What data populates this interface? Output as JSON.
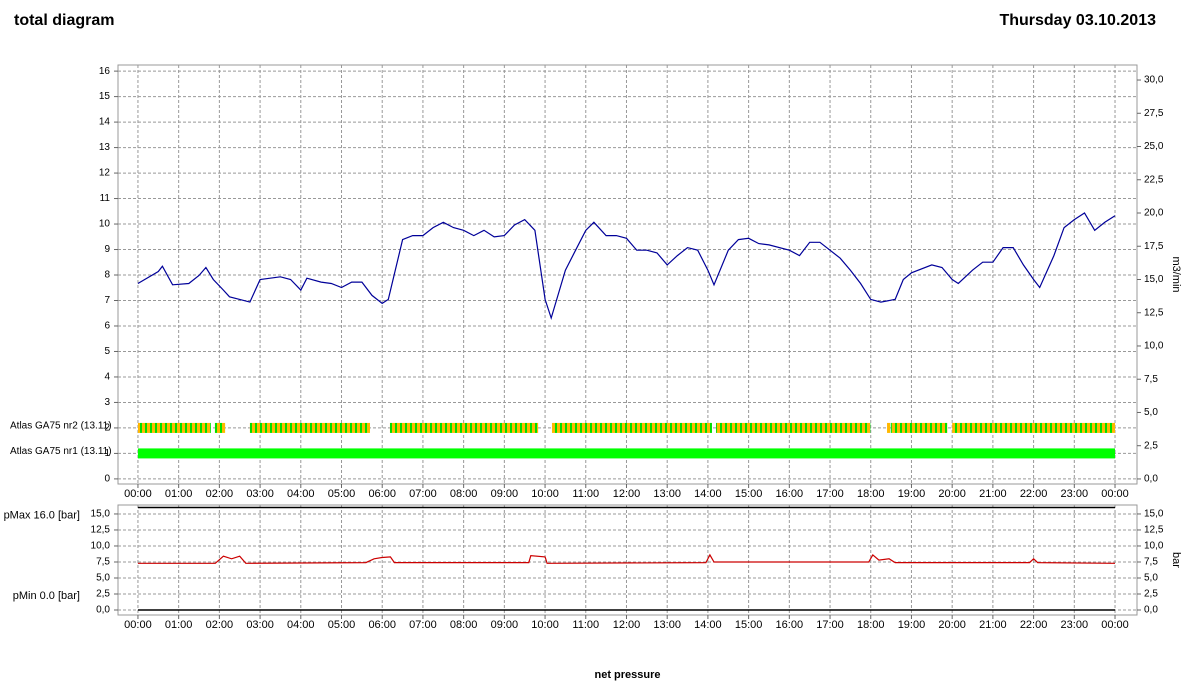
{
  "header": {
    "title": "total diagram",
    "date": "Thursday 03.10.2013"
  },
  "chart_data": [
    {
      "type": "line",
      "y2label": "m3/min",
      "grid": true,
      "xlim": [
        -0.49,
        24.54
      ],
      "xticks": [
        {
          "value": 0,
          "label": "00:00"
        },
        {
          "value": 1,
          "label": "01:00"
        },
        {
          "value": 2,
          "label": "02:00"
        },
        {
          "value": 3,
          "label": "03:00"
        },
        {
          "value": 4,
          "label": "04:00"
        },
        {
          "value": 5,
          "label": "05:00"
        },
        {
          "value": 6,
          "label": "06:00"
        },
        {
          "value": 7,
          "label": "07:00"
        },
        {
          "value": 8,
          "label": "08:00"
        },
        {
          "value": 9,
          "label": "09:00"
        },
        {
          "value": 10,
          "label": "10:00"
        },
        {
          "value": 11,
          "label": "11:00"
        },
        {
          "value": 12,
          "label": "12:00"
        },
        {
          "value": 13,
          "label": "13:00"
        },
        {
          "value": 14,
          "label": "14:00"
        },
        {
          "value": 15,
          "label": "15:00"
        },
        {
          "value": 16,
          "label": "16:00"
        },
        {
          "value": 17,
          "label": "17:00"
        },
        {
          "value": 18,
          "label": "18:00"
        },
        {
          "value": 19,
          "label": "19:00"
        },
        {
          "value": 20,
          "label": "20:00"
        },
        {
          "value": 21,
          "label": "21:00"
        },
        {
          "value": 22,
          "label": "22:00"
        },
        {
          "value": 23,
          "label": "23:00"
        },
        {
          "value": 24,
          "label": "00:00"
        }
      ],
      "ylim": [
        -0.2,
        16.24
      ],
      "yticks": [
        0,
        1,
        2,
        3,
        4,
        5,
        6,
        7,
        8,
        9,
        10,
        11,
        12,
        13,
        14,
        15,
        16
      ],
      "y2lim": [
        -0.38,
        31.13
      ],
      "y2ticks": [
        {
          "value": 0,
          "label": "0,0"
        },
        {
          "value": 2.5,
          "label": "2,5"
        },
        {
          "value": 5,
          "label": "5,0"
        },
        {
          "value": 7.5,
          "label": "7,5"
        },
        {
          "value": 10,
          "label": "10,0"
        },
        {
          "value": 12.5,
          "label": "12,5"
        },
        {
          "value": 15,
          "label": "15,0"
        },
        {
          "value": 17.5,
          "label": "17,5"
        },
        {
          "value": 20,
          "label": "20,0"
        },
        {
          "value": 22.5,
          "label": "22,5"
        },
        {
          "value": 25,
          "label": "25,0"
        },
        {
          "value": 27.5,
          "label": "27,5"
        },
        {
          "value": 30,
          "label": "30,0"
        }
      ],
      "series": [
        {
          "axis": "y2",
          "color": "#000099",
          "x": [
            0,
            0.5,
            0.6,
            0.85,
            1.25,
            1.5,
            1.67,
            1.85,
            2.1,
            2.25,
            2.5,
            2.75,
            3,
            3.5,
            3.75,
            4,
            4.15,
            4.5,
            4.75,
            5,
            5.25,
            5.5,
            5.75,
            6,
            6.15,
            6.5,
            6.75,
            7,
            7.25,
            7.5,
            7.75,
            8,
            8.25,
            8.5,
            8.75,
            9,
            9.25,
            9.5,
            9.75,
            10,
            10.15,
            10.5,
            10.75,
            11,
            11.2,
            11.5,
            11.75,
            12,
            12.25,
            12.5,
            12.75,
            13,
            13.25,
            13.5,
            13.75,
            14,
            14.15,
            14.5,
            14.75,
            15,
            15.25,
            15.5,
            16,
            16.25,
            16.5,
            16.75,
            17,
            17.25,
            17.5,
            17.75,
            18,
            18.25,
            18.6,
            18.8,
            19,
            19.5,
            19.75,
            20,
            20.15,
            20.5,
            20.75,
            21,
            21.25,
            21.5,
            21.75,
            22,
            22.15,
            22.5,
            22.75,
            23,
            23.25,
            23.5,
            23.75,
            24
          ],
          "values": [
            14.7,
            15.6,
            16.0,
            14.6,
            14.7,
            15.3,
            15.9,
            15.0,
            14.2,
            13.7,
            13.5,
            13.3,
            15.0,
            15.2,
            15.0,
            14.2,
            15.1,
            14.8,
            14.7,
            14.4,
            14.8,
            14.8,
            13.8,
            13.2,
            13.5,
            18.0,
            18.3,
            18.3,
            18.9,
            19.3,
            18.9,
            18.7,
            18.3,
            18.7,
            18.2,
            18.3,
            19.1,
            19.5,
            18.7,
            13.5,
            12.1,
            15.7,
            17.2,
            18.7,
            19.3,
            18.3,
            18.3,
            18.1,
            17.2,
            17.2,
            17.0,
            16.1,
            16.8,
            17.4,
            17.2,
            15.7,
            14.6,
            17.2,
            18.0,
            18.1,
            17.7,
            17.6,
            17.2,
            16.8,
            17.8,
            17.8,
            17.2,
            16.6,
            15.7,
            14.7,
            13.5,
            13.3,
            13.5,
            15.0,
            15.5,
            16.1,
            15.9,
            15.0,
            14.7,
            15.7,
            16.3,
            16.3,
            17.4,
            17.4,
            16.1,
            15.0,
            14.4,
            16.8,
            18.9,
            19.5,
            20.0,
            18.7,
            19.3,
            19.8
          ]
        }
      ],
      "status_rows": [
        {
          "name": "Atlas GA75 nr2 (13.11)",
          "level": 2,
          "color": "#ffb800",
          "stripe_color": "#00e000",
          "segments": [
            [
              0,
              1.79
            ],
            [
              1.89,
              2.14
            ],
            [
              2.75,
              5.7
            ],
            [
              6.19,
              9.83
            ],
            [
              10.17,
              14.1
            ],
            [
              14.2,
              17.99
            ],
            [
              18.4,
              18.48
            ],
            [
              18.5,
              19.88
            ],
            [
              20.0,
              24
            ]
          ]
        },
        {
          "name": "Atlas GA75 nr1 (13.11)",
          "level": 1,
          "color": "#00ff00",
          "stripe_color": "#00ff00",
          "segments": [
            [
              0,
              24
            ]
          ]
        }
      ]
    },
    {
      "type": "line",
      "xlabel": "net pressure",
      "y2label": "bar",
      "grid": true,
      "xlim": [
        -0.49,
        24.54
      ],
      "xticks": [
        {
          "value": 0,
          "label": "00:00"
        },
        {
          "value": 1,
          "label": "01:00"
        },
        {
          "value": 2,
          "label": "02:00"
        },
        {
          "value": 3,
          "label": "03:00"
        },
        {
          "value": 4,
          "label": "04:00"
        },
        {
          "value": 5,
          "label": "05:00"
        },
        {
          "value": 6,
          "label": "06:00"
        },
        {
          "value": 7,
          "label": "07:00"
        },
        {
          "value": 8,
          "label": "08:00"
        },
        {
          "value": 9,
          "label": "09:00"
        },
        {
          "value": 10,
          "label": "10:00"
        },
        {
          "value": 11,
          "label": "11:00"
        },
        {
          "value": 12,
          "label": "12:00"
        },
        {
          "value": 13,
          "label": "13:00"
        },
        {
          "value": 14,
          "label": "14:00"
        },
        {
          "value": 15,
          "label": "15:00"
        },
        {
          "value": 16,
          "label": "16:00"
        },
        {
          "value": 17,
          "label": "17:00"
        },
        {
          "value": 18,
          "label": "18:00"
        },
        {
          "value": 19,
          "label": "19:00"
        },
        {
          "value": 20,
          "label": "20:00"
        },
        {
          "value": 21,
          "label": "21:00"
        },
        {
          "value": 22,
          "label": "22:00"
        },
        {
          "value": 23,
          "label": "23:00"
        },
        {
          "value": 24,
          "label": "00:00"
        }
      ],
      "ylim": [
        -0.78,
        16.4
      ],
      "yticks": [
        {
          "value": 0,
          "label": "0,0"
        },
        {
          "value": 2.5,
          "label": "2,5"
        },
        {
          "value": 5,
          "label": "5,0"
        },
        {
          "value": 7.5,
          "label": "7,5"
        },
        {
          "value": 10,
          "label": "10,0"
        },
        {
          "value": 12.5,
          "label": "12,5"
        },
        {
          "value": 15,
          "label": "15,0"
        }
      ],
      "y2lim": [
        -0.78,
        16.4
      ],
      "y2ticks": [
        {
          "value": 0,
          "label": "0,0"
        },
        {
          "value": 2.5,
          "label": "2,5"
        },
        {
          "value": 5,
          "label": "5,0"
        },
        {
          "value": 7.5,
          "label": "7,5"
        },
        {
          "value": 10,
          "label": "10,0"
        },
        {
          "value": 12.5,
          "label": "12,5"
        },
        {
          "value": 15,
          "label": "15,0"
        }
      ],
      "limits": [
        {
          "label": "pMax 16.0 [bar]",
          "value": 16,
          "color": "#000000"
        },
        {
          "label": "pMin 0.0 [bar]",
          "value": 0,
          "color": "#000000"
        }
      ],
      "series": [
        {
          "color": "#cc0000",
          "x": [
            0,
            1.9,
            2.1,
            2.3,
            2.5,
            2.65,
            5.6,
            5.8,
            6.0,
            6.2,
            6.3,
            9.6,
            9.65,
            10.0,
            10.05,
            13.95,
            14.05,
            14.15,
            17.95,
            18.05,
            18.2,
            18.45,
            18.6,
            21.9,
            22.0,
            22.1,
            24
          ],
          "values": [
            7.3,
            7.3,
            8.4,
            8.0,
            8.4,
            7.3,
            7.4,
            8.0,
            8.2,
            8.3,
            7.4,
            7.4,
            8.5,
            8.3,
            7.3,
            7.4,
            8.6,
            7.5,
            7.5,
            8.6,
            7.8,
            8.0,
            7.4,
            7.4,
            8.0,
            7.4,
            7.3
          ]
        }
      ]
    }
  ]
}
